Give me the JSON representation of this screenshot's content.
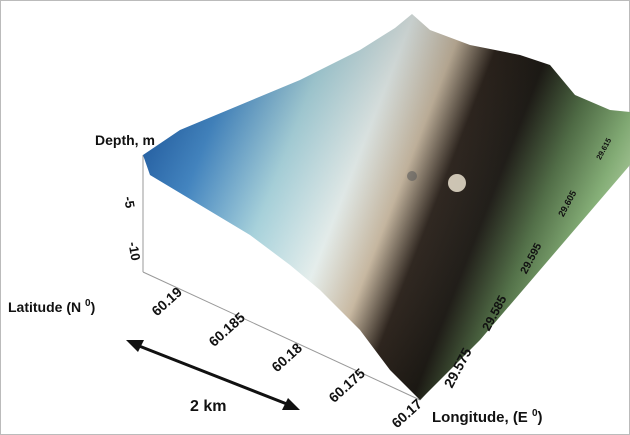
{
  "figure": {
    "z_axis": {
      "label": "Depth, m",
      "ticks": [
        "-5",
        "-10"
      ]
    },
    "latitude_axis": {
      "label": [
        "Latitude (N ",
        "0",
        ")"
      ],
      "ticks": [
        "60.19",
        "60.185",
        "60.18",
        "60.175",
        "60.17"
      ]
    },
    "longitude_axis": {
      "label": [
        "Longitude, (E ",
        "0",
        ")"
      ],
      "ticks": [
        "29.575",
        "29.585",
        "29.595",
        "29.605",
        "29.615"
      ]
    },
    "scale_bar": "2 km"
  }
}
